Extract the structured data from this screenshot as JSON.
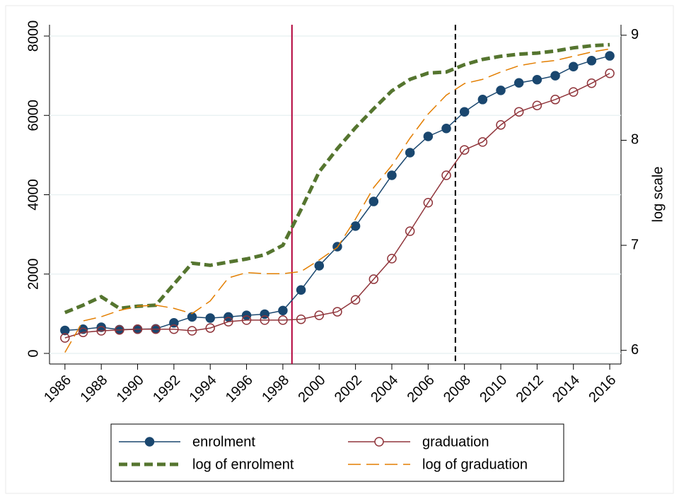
{
  "chart_data": {
    "type": "line",
    "y2label": "log scale",
    "x": [
      1986,
      1987,
      1988,
      1989,
      1990,
      1991,
      1992,
      1993,
      1994,
      1995,
      1996,
      1997,
      1998,
      1999,
      2000,
      2001,
      2002,
      2003,
      2004,
      2005,
      2006,
      2007,
      2008,
      2009,
      2010,
      2011,
      2012,
      2013,
      2014,
      2015,
      2016
    ],
    "xlim": [
      1985.15,
      2016.62
    ],
    "xticks": [
      1986,
      1988,
      1990,
      1992,
      1994,
      1996,
      1998,
      2000,
      2002,
      2004,
      2006,
      2008,
      2010,
      2012,
      2014,
      2016
    ],
    "ylim": [
      -267,
      8285
    ],
    "yticks": [
      0,
      2000,
      4000,
      6000,
      8000
    ],
    "y2lim": [
      5.87,
      9.1
    ],
    "y2ticks": [
      6,
      7,
      8,
      9
    ],
    "grid": true,
    "legend": "bottom",
    "vlines": [
      {
        "x": 1998.5,
        "color": "#b2003a",
        "dash": "none"
      },
      {
        "x": 2007.5,
        "color": "#000000",
        "dash": "8,5"
      }
    ],
    "series": [
      {
        "name": "enrolment",
        "color": "#1a476f",
        "marker": "filled",
        "dash": "none",
        "width": 1.5,
        "values": [
          580,
          610,
          660,
          600,
          610,
          620,
          770,
          920,
          890,
          920,
          960,
          990,
          1080,
          1600,
          2210,
          2690,
          3210,
          3830,
          4490,
          5060,
          5470,
          5670,
          6090,
          6400,
          6630,
          6820,
          6900,
          7000,
          7230,
          7380,
          7500
        ]
      },
      {
        "name": "graduation",
        "color": "#90353b",
        "marker": "hollow",
        "dash": "none",
        "width": 1.5,
        "values": [
          390,
          530,
          570,
          590,
          610,
          610,
          610,
          570,
          640,
          800,
          840,
          840,
          840,
          860,
          960,
          1050,
          1350,
          1870,
          2390,
          3080,
          3800,
          4490,
          5130,
          5330,
          5760,
          6090,
          6250,
          6400,
          6590,
          6810,
          7060
        ]
      },
      {
        "name": "log of enrolment",
        "color": "#55752f",
        "marker": "none",
        "dash": "12,6",
        "width": 5,
        "axis": "y2",
        "values": [
          6.36,
          6.43,
          6.51,
          6.4,
          6.42,
          6.43,
          6.63,
          6.83,
          6.81,
          6.84,
          6.87,
          6.91,
          7.0,
          7.34,
          7.7,
          7.92,
          8.12,
          8.3,
          8.47,
          8.58,
          8.64,
          8.65,
          8.72,
          8.77,
          8.8,
          8.82,
          8.83,
          8.85,
          8.88,
          8.9,
          8.91
        ]
      },
      {
        "name": "log of graduation",
        "color": "#e37e00",
        "marker": "none",
        "dash": "18,8",
        "width": 1.5,
        "axis": "y2",
        "values": [
          5.98,
          6.28,
          6.32,
          6.38,
          6.42,
          6.43,
          6.4,
          6.35,
          6.47,
          6.69,
          6.74,
          6.73,
          6.73,
          6.75,
          6.86,
          6.98,
          7.25,
          7.55,
          7.76,
          8.02,
          8.25,
          8.43,
          8.54,
          8.58,
          8.65,
          8.71,
          8.74,
          8.76,
          8.8,
          8.84,
          8.87
        ]
      }
    ]
  }
}
